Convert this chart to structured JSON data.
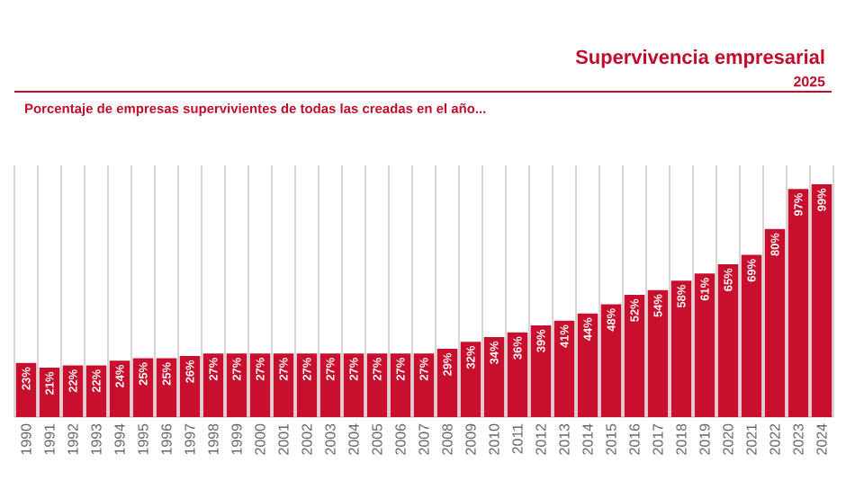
{
  "chart_data": {
    "type": "bar",
    "title": "Supervivencia empresarial",
    "subtitle": "Porcentaje de empresas supervivientes de todas las creadas en el año...",
    "annotations": [
      "2025"
    ],
    "categories": [
      "1990",
      "1991",
      "1992",
      "1993",
      "1994",
      "1995",
      "1996",
      "1997",
      "1998",
      "1999",
      "2000",
      "2001",
      "2002",
      "2003",
      "2004",
      "2005",
      "2006",
      "2007",
      "2008",
      "2009",
      "2010",
      "2011",
      "2012",
      "2013",
      "2014",
      "2015",
      "2016",
      "2017",
      "2018",
      "2019",
      "2020",
      "2021",
      "2022",
      "2023",
      "2024"
    ],
    "values": [
      23,
      21,
      22,
      22,
      24,
      25,
      25,
      26,
      27,
      27,
      27,
      27,
      27,
      27,
      27,
      27,
      27,
      27,
      29,
      32,
      34,
      36,
      39,
      41,
      44,
      48,
      52,
      54,
      58,
      61,
      65,
      69,
      80,
      97,
      99
    ],
    "value_labels": [
      "23%",
      "21%",
      "22%",
      "22%",
      "24%",
      "25%",
      "25%",
      "26%",
      "27%",
      "27%",
      "27%",
      "27%",
      "27%",
      "27%",
      "27%",
      "27%",
      "27%",
      "27%",
      "29%",
      "32%",
      "34%",
      "36%",
      "39%",
      "41%",
      "44%",
      "48%",
      "52%",
      "54%",
      "58%",
      "61%",
      "65%",
      "69%",
      "80%",
      "97%",
      "99%"
    ],
    "color": "#c8102e",
    "ylim": [
      0,
      107
    ],
    "grid": "x",
    "tick_labels": "x"
  }
}
